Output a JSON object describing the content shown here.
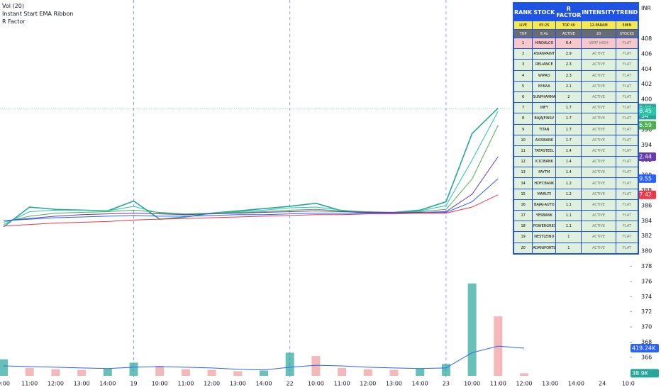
{
  "currency": "INR",
  "indicators": [
    "Vol (20)",
    "Instant Start EMA Ribbon",
    "R Factor"
  ],
  "chart_data": [
    {
      "type": "line",
      "categories": [
        "0:00",
        "11:00",
        "12:00",
        "13:00",
        "14:00",
        "19",
        "10:00",
        "11:00",
        "12:00",
        "13:00",
        "14:00",
        "22",
        "10:00",
        "11:00",
        "12:00",
        "13:00",
        "14:00",
        "23",
        "10:00",
        "11:00",
        "12:00",
        "13:00",
        "14:00",
        "24",
        "10:0"
      ],
      "series": [
        {
          "name": "COALINDIA",
          "color": "#26a69a",
          "values": [
            383.2,
            385.8,
            385.5,
            385.4,
            385.3,
            386.6,
            384.2,
            384.5,
            385.0,
            385.3,
            385.6,
            385.9,
            386.3,
            385.3,
            385.0,
            385.1,
            385.4,
            386.5,
            395.5,
            398.85,
            null,
            null,
            null,
            null,
            null
          ]
        },
        {
          "color": "#26c6a6",
          "values": [
            383.5,
            385.2,
            385.4,
            385.4,
            385.3,
            385.9,
            385.0,
            384.8,
            385.0,
            385.2,
            385.4,
            385.7,
            385.8,
            385.4,
            385.1,
            385.1,
            385.3,
            386.0,
            392.0,
            398.45,
            null,
            null,
            null,
            null,
            null
          ]
        },
        {
          "color": "#4caf50",
          "values": [
            383.8,
            384.6,
            385.0,
            385.1,
            385.2,
            385.4,
            385.1,
            384.9,
            385.0,
            385.1,
            385.2,
            385.4,
            385.5,
            385.3,
            385.2,
            385.1,
            385.2,
            385.5,
            389.5,
            396.59,
            null,
            null,
            null,
            null,
            null
          ]
        },
        {
          "color": "#673ab7",
          "values": [
            384.0,
            384.3,
            384.6,
            384.8,
            384.9,
            385.0,
            384.9,
            384.8,
            384.9,
            385.0,
            385.1,
            385.2,
            385.3,
            385.2,
            385.1,
            385.1,
            385.1,
            385.2,
            387.5,
            392.44,
            null,
            null,
            null,
            null,
            null
          ]
        },
        {
          "color": "#2962ff",
          "values": [
            384.0,
            384.2,
            384.4,
            384.5,
            384.6,
            384.7,
            384.6,
            384.6,
            384.7,
            384.8,
            384.8,
            384.9,
            385.0,
            385.0,
            385.0,
            385.0,
            385.0,
            385.1,
            386.5,
            389.55,
            null,
            null,
            null,
            null,
            null
          ]
        },
        {
          "color": "#f23645",
          "values": [
            383.3,
            383.5,
            383.7,
            383.8,
            383.9,
            384.1,
            384.2,
            384.3,
            384.4,
            384.5,
            384.6,
            384.7,
            384.8,
            384.8,
            384.9,
            384.9,
            385.0,
            385.0,
            385.8,
            387.42,
            null,
            null,
            null,
            null,
            null
          ]
        }
      ],
      "countdown": "03:54",
      "ylim": [
        361.5,
        413.1
      ],
      "yticks": [
        366,
        368,
        370,
        372,
        374,
        376,
        378,
        380,
        382,
        384,
        386,
        388,
        390,
        392,
        394,
        396,
        398,
        400,
        402,
        404,
        406,
        408
      ],
      "grid": false
    },
    {
      "type": "bar",
      "series": [
        {
          "name": "Vol (20)",
          "color": "#26a69a",
          "values": [
            250,
            120,
            100,
            90,
            110,
            200,
            150,
            100,
            90,
            70,
            80,
            350,
            300,
            120,
            100,
            90,
            110,
            180,
            1400,
            900,
            38.9,
            null,
            null,
            null,
            null
          ],
          "value_labels": [
            null,
            null,
            null,
            null,
            null,
            null,
            null,
            null,
            null,
            null,
            null,
            null,
            null,
            null,
            null,
            null,
            null,
            null,
            null,
            null,
            "38.9K",
            null,
            null,
            null,
            null
          ]
        },
        {
          "color": "#2962ff",
          "values": [
            150,
            140,
            130,
            120,
            110,
            130,
            140,
            130,
            120,
            100,
            90,
            130,
            160,
            150,
            130,
            120,
            110,
            120,
            350,
            450,
            419.24,
            null,
            null,
            null,
            null
          ],
          "value_labels": [
            null,
            null,
            null,
            null,
            null,
            null,
            null,
            null,
            null,
            null,
            null,
            null,
            null,
            null,
            null,
            null,
            null,
            null,
            null,
            null,
            "419.24K",
            null,
            null,
            null,
            null
          ]
        }
      ],
      "ylim": [
        0,
        1450
      ]
    }
  ],
  "table": {
    "header": [
      "RANK",
      "STOCK",
      "R FACTOR",
      "INTENSITY",
      "TREND"
    ],
    "info": [
      [
        "LIVE",
        "05:25",
        "TOP 40",
        "12-PARAM",
        "5MIN"
      ],
      [
        "TOP",
        "6.4x",
        "ACTIVE",
        "20",
        "STOCKS"
      ]
    ],
    "rows": [
      [
        1,
        "HINDALCO",
        6.4,
        "VERY HIGH",
        "FLAT"
      ],
      [
        2,
        "ASIANPAINT",
        2.9,
        "ACTIVE",
        "FLAT"
      ],
      [
        3,
        "RELIANCE",
        2.3,
        "ACTIVE",
        "FLAT"
      ],
      [
        4,
        "WIPRO",
        2.3,
        "ACTIVE",
        "FLAT"
      ],
      [
        5,
        "NYKAA",
        2.1,
        "ACTIVE",
        "FLAT"
      ],
      [
        6,
        "SUNPHARMA",
        2,
        "ACTIVE",
        "FLAT"
      ],
      [
        7,
        "INFY",
        1.7,
        "ACTIVE",
        "FLAT"
      ],
      [
        8,
        "BAJAJFINSV",
        1.7,
        "ACTIVE",
        "FLAT"
      ],
      [
        9,
        "TITAN",
        1.7,
        "ACTIVE",
        "FLAT"
      ],
      [
        10,
        "AXISBANK",
        1.7,
        "ACTIVE",
        "FLAT"
      ],
      [
        11,
        "TATASTEEL",
        1.4,
        "ACTIVE",
        "FLAT"
      ],
      [
        12,
        "ICICIBANK",
        1.4,
        "ACTIVE",
        "FLAT"
      ],
      [
        13,
        "PAYTM",
        1.4,
        "ACTIVE",
        "FLAT"
      ],
      [
        14,
        "HDFCBANK",
        1.2,
        "ACTIVE",
        "FLAT"
      ],
      [
        15,
        "MARUTI",
        1.2,
        "ACTIVE",
        "FLAT"
      ],
      [
        16,
        "BAJAJ-AUTO",
        1.1,
        "ACTIVE",
        "FLAT"
      ],
      [
        17,
        "YESBANK",
        1.1,
        "ACTIVE",
        "FLAT"
      ],
      [
        18,
        "POWERGRID",
        1.1,
        "ACTIVE",
        "FLAT"
      ],
      [
        19,
        "NESTLEIND",
        1,
        "ACTIVE",
        "FLAT"
      ],
      [
        20,
        "ADANIPORTS",
        1,
        "ACTIVE",
        "FLAT"
      ]
    ]
  }
}
